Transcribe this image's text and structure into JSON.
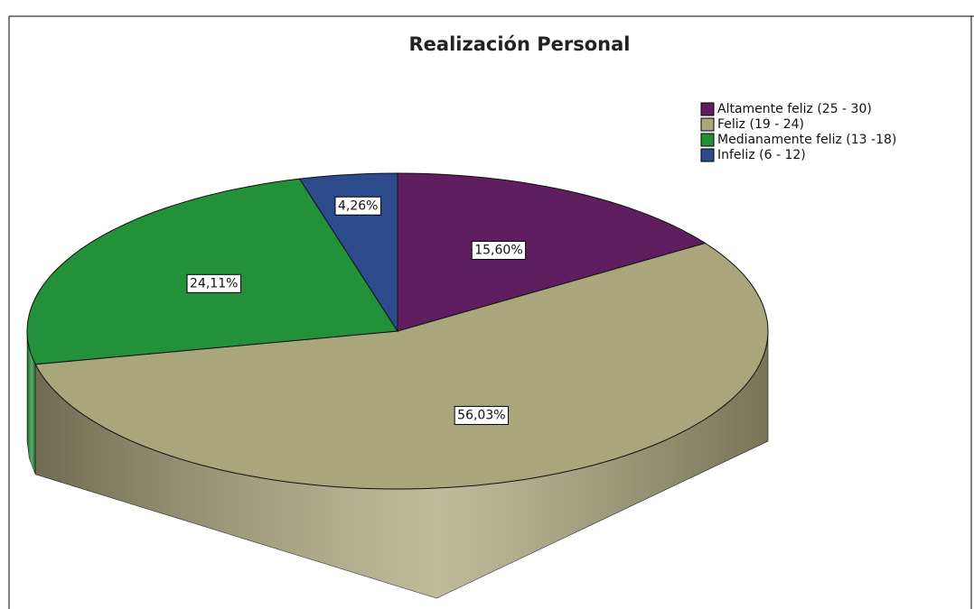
{
  "chart_data": {
    "type": "pie3d",
    "title": "Realización Personal",
    "series": [
      {
        "name": "Altamente feliz (25 - 30)",
        "color": "#5f1e5f"
      },
      {
        "name": "Feliz (19 - 24)",
        "color": "#aaa67c"
      },
      {
        "name": "Medianamente feliz (13 -18)",
        "color": "#23913a"
      },
      {
        "name": "Infeliz (6 - 12)",
        "color": "#2c4a8c"
      }
    ],
    "values": [
      15.6,
      56.03,
      24.11,
      4.26
    ],
    "value_labels": [
      "15,60%",
      "56,03%",
      "24,11%",
      "4,26%"
    ],
    "legend": "top-right"
  }
}
